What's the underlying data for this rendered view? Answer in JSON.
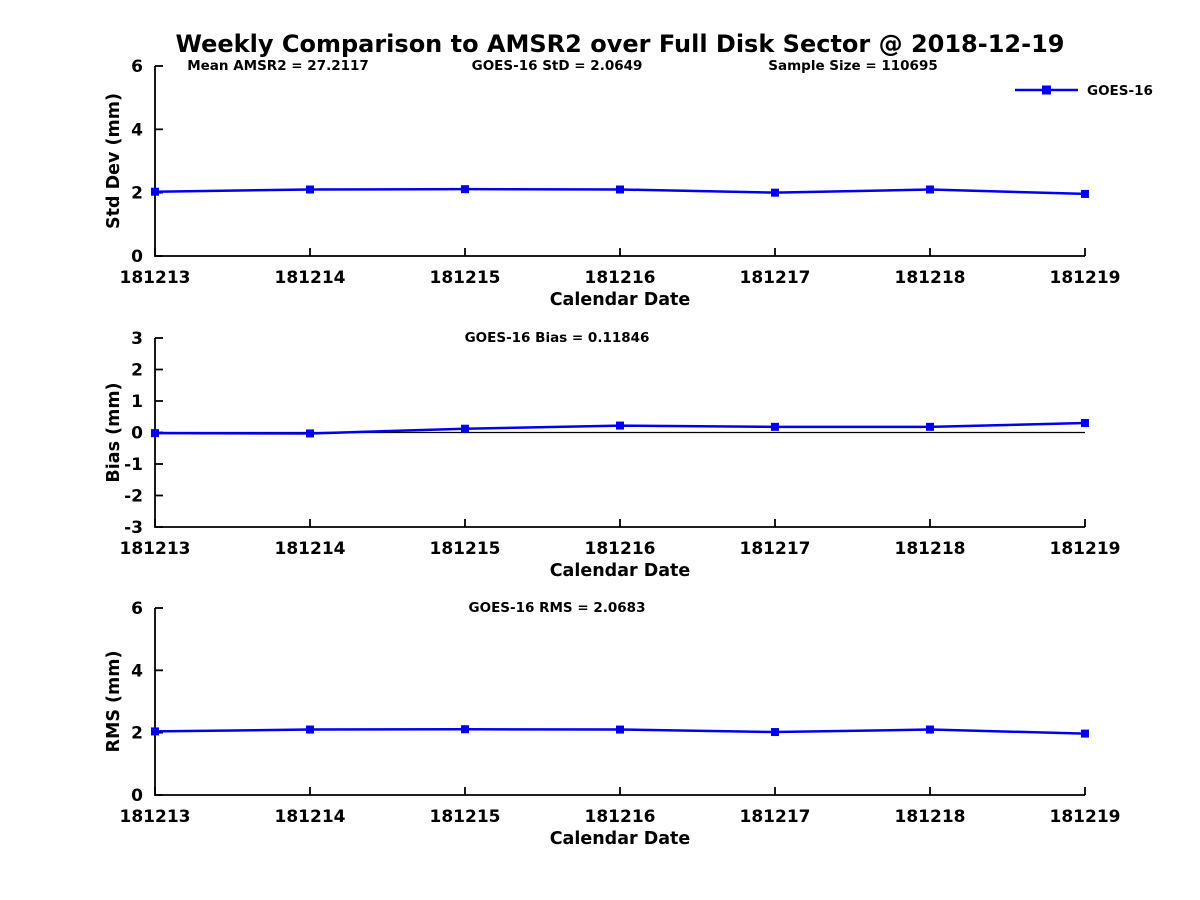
{
  "figure": {
    "title": "Weekly Comparison to AMSR2 over Full Disk Sector @ 2018-12-19",
    "background_color": "#ffffff",
    "text_color": "#000000",
    "series_color": "#0000ee"
  },
  "chart_data": [
    {
      "type": "line",
      "name": "std-dev",
      "categories": [
        "181213",
        "181214",
        "181215",
        "181216",
        "181217",
        "181218",
        "181219"
      ],
      "series": [
        {
          "name": "GOES-16",
          "color": "#0000ee",
          "marker": "square",
          "values": [
            2.03,
            2.1,
            2.11,
            2.1,
            2.0,
            2.1,
            1.96
          ]
        }
      ],
      "xlabel": "Calendar Date",
      "ylabel": "Std Dev (mm)",
      "ylim": [
        0,
        6
      ],
      "yticks": [
        0,
        2,
        4,
        6
      ],
      "grid": false,
      "zero_line": false,
      "annotations": [
        "Mean AMSR2 = 27.2117",
        "GOES-16 StD = 2.0649",
        "Sample Size = 110695"
      ],
      "legend": {
        "show": true,
        "label": "GOES-16",
        "position": "top-right"
      }
    },
    {
      "type": "line",
      "name": "bias",
      "categories": [
        "181213",
        "181214",
        "181215",
        "181216",
        "181217",
        "181218",
        "181219"
      ],
      "series": [
        {
          "name": "GOES-16",
          "color": "#0000ee",
          "marker": "square",
          "values": [
            -0.02,
            -0.03,
            0.12,
            0.22,
            0.18,
            0.18,
            0.3
          ]
        }
      ],
      "xlabel": "Calendar Date",
      "ylabel": "Bias (mm)",
      "ylim": [
        -3,
        3
      ],
      "yticks": [
        -3,
        -2,
        -1,
        0,
        1,
        2,
        3
      ],
      "grid": false,
      "zero_line": true,
      "annotations": [
        "GOES-16 Bias  = 0.11846"
      ],
      "legend": {
        "show": false
      }
    },
    {
      "type": "line",
      "name": "rms",
      "categories": [
        "181213",
        "181214",
        "181215",
        "181216",
        "181217",
        "181218",
        "181219"
      ],
      "series": [
        {
          "name": "GOES-16",
          "color": "#0000ee",
          "marker": "square",
          "values": [
            2.04,
            2.1,
            2.11,
            2.1,
            2.02,
            2.1,
            1.97
          ]
        }
      ],
      "xlabel": "Calendar Date",
      "ylabel": "RMS (mm)",
      "ylim": [
        0,
        6
      ],
      "yticks": [
        0,
        2,
        4,
        6
      ],
      "grid": false,
      "zero_line": false,
      "annotations": [
        "GOES-16 RMS = 2.0683"
      ],
      "legend": {
        "show": false
      }
    }
  ]
}
